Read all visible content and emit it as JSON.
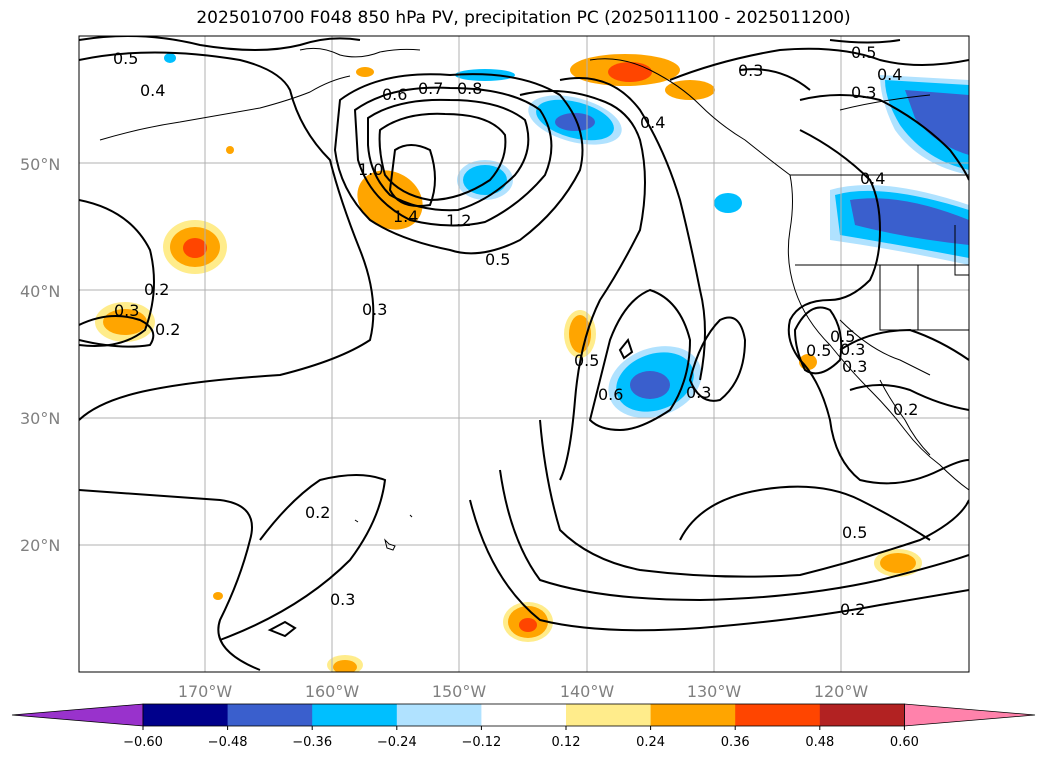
{
  "title": "2025010700 F048 850 hPa PV, precipitation PC (2025011100 - 2025011200)",
  "lat_labels": [
    "50°N",
    "40°N",
    "30°N",
    "20°N"
  ],
  "lon_labels": [
    "170°W",
    "160°W",
    "150°W",
    "140°W",
    "130°W",
    "120°W"
  ],
  "contour_labels": [
    "0.5",
    "0.4",
    "0.6",
    "0.7",
    "0.8",
    "0.4",
    "0.3",
    "0.5",
    "0.4",
    "0.3",
    "1.0",
    "1.4",
    "1.2",
    "0.5",
    "0.3",
    "0.3",
    "0.2",
    "0.2",
    "0.5",
    "0.6",
    "0.3",
    "0.5",
    "0.2",
    "0.2",
    "0.3",
    "0.5",
    "0.2",
    "0.3",
    "0.5",
    "0.4",
    "0.3"
  ],
  "colorbar": {
    "ticks": [
      "−0.60",
      "−0.48",
      "−0.36",
      "−0.24",
      "−0.12",
      "0.12",
      "0.24",
      "0.36",
      "0.48",
      "0.60"
    ],
    "colors": [
      "#9932cc",
      "#00008b",
      "#3a5fcd",
      "#00bfff",
      "#b0e2ff",
      "#ffffff",
      "#ffec8b",
      "#ffa500",
      "#ff4500",
      "#b22222",
      "#ff82ab"
    ]
  }
}
